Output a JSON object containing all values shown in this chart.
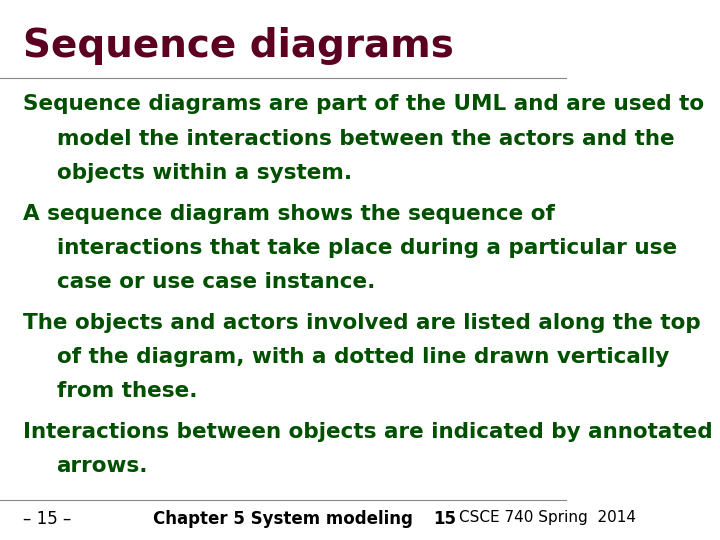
{
  "title": "Sequence diagrams",
  "title_color": "#5B0020",
  "title_fontsize": 28,
  "body_color": "#005000",
  "body_fontsize": 15.5,
  "footer_color": "#000000",
  "footer_fontsize": 12,
  "background_color": "#FFFFFF",
  "bullets": [
    {
      "first_line": "Sequence diagrams are part of the UML and are used to",
      "continuation": [
        "model the interactions between the actors and the",
        "objects within a system."
      ]
    },
    {
      "first_line": "A sequence diagram shows the sequence of",
      "continuation": [
        "interactions that take place during a particular use",
        "case or use case instance."
      ]
    },
    {
      "first_line": "The objects and actors involved are listed along the top",
      "continuation": [
        "of the diagram, with a dotted line drawn vertically",
        "from these."
      ]
    },
    {
      "first_line": "Interactions between objects are indicated by annotated",
      "continuation": [
        "arrows."
      ]
    }
  ],
  "footer_left": "– 15 –",
  "footer_center": "Chapter 5 System modeling",
  "footer_right_num": "15",
  "footer_right_text": "CSCE 740 Spring  2014",
  "line_color": "#888888",
  "line_width": 0.8
}
